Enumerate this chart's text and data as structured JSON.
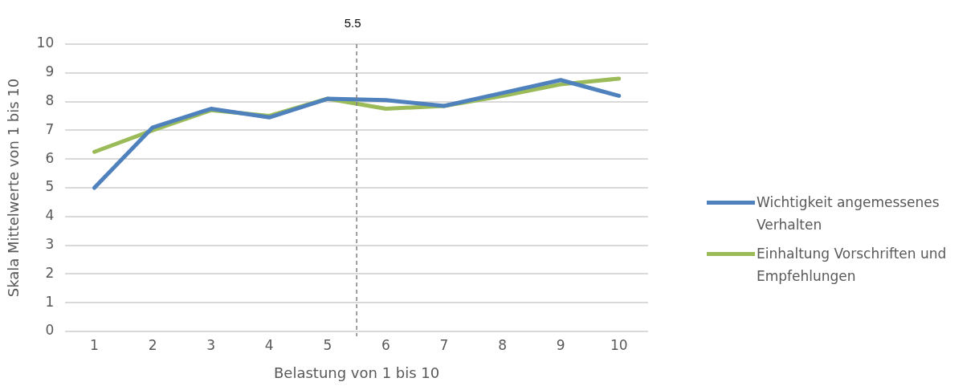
{
  "chart_data": {
    "type": "line",
    "xlabel": "Belastung von 1 bis 10",
    "ylabel": "Skala Mittelwerte von 1 bis 10",
    "x": [
      1,
      2,
      3,
      4,
      5,
      6,
      7,
      8,
      9,
      10
    ],
    "xlim": [
      0.5,
      10.5
    ],
    "xticks": [
      1,
      2,
      3,
      4,
      5,
      6,
      7,
      8,
      9,
      10
    ],
    "ylim": [
      0,
      10
    ],
    "yticks": [
      0,
      1,
      2,
      3,
      4,
      5,
      6,
      7,
      8,
      9,
      10
    ],
    "grid": "y",
    "legend": "right",
    "marker": "none",
    "line_style": "solid",
    "series": [
      {
        "name": "Wichtigkeit angemessenes Verhalten",
        "color": "#4f81bd",
        "values": [
          5.0,
          7.1,
          7.75,
          7.45,
          8.1,
          8.05,
          7.85,
          8.3,
          8.75,
          8.2
        ]
      },
      {
        "name": "Einhaltung Vorschriften und Empfehlungen",
        "color": "#9bbb59",
        "values": [
          6.25,
          7.0,
          7.7,
          7.5,
          8.1,
          7.75,
          7.85,
          8.2,
          8.6,
          8.8
        ]
      }
    ],
    "ref_lines": [
      {
        "axis": "x",
        "value": 5.5,
        "label": "5.5",
        "color": "#808080",
        "line_style": "dashed"
      }
    ]
  }
}
